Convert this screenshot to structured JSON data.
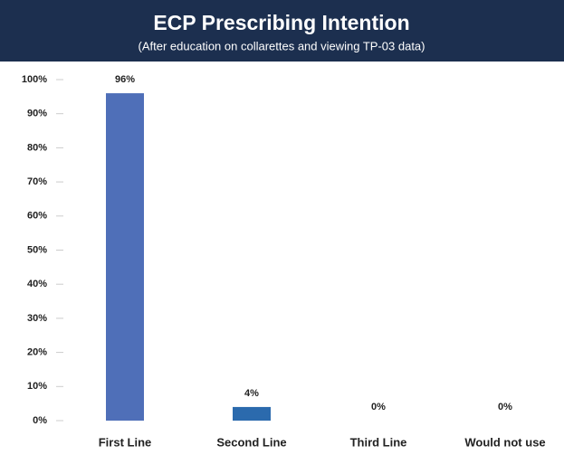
{
  "chart_data": {
    "type": "bar",
    "title": "ECP Prescribing Intention",
    "subtitle": "(After education on collarettes and viewing TP-03 data)",
    "categories": [
      "First Line",
      "Second Line",
      "Third Line",
      "Would not use"
    ],
    "values": [
      96,
      4,
      0,
      0
    ],
    "value_labels": [
      "96%",
      "4%",
      "0%",
      "0%"
    ],
    "colors": [
      "#4f6fb8",
      "#2b6aad",
      "#2b6aad",
      "#2b6aad"
    ],
    "ylim": [
      0,
      100
    ],
    "yticks": [
      {
        "value": 0,
        "label": "0%"
      },
      {
        "value": 10,
        "label": "10%"
      },
      {
        "value": 20,
        "label": "20%"
      },
      {
        "value": 30,
        "label": "30%"
      },
      {
        "value": 40,
        "label": "40%"
      },
      {
        "value": 50,
        "label": "50%"
      },
      {
        "value": 60,
        "label": "60%"
      },
      {
        "value": 70,
        "label": "70%"
      },
      {
        "value": 80,
        "label": "80%"
      },
      {
        "value": 90,
        "label": "90%"
      },
      {
        "value": 100,
        "label": "100%"
      }
    ],
    "grid": false
  }
}
